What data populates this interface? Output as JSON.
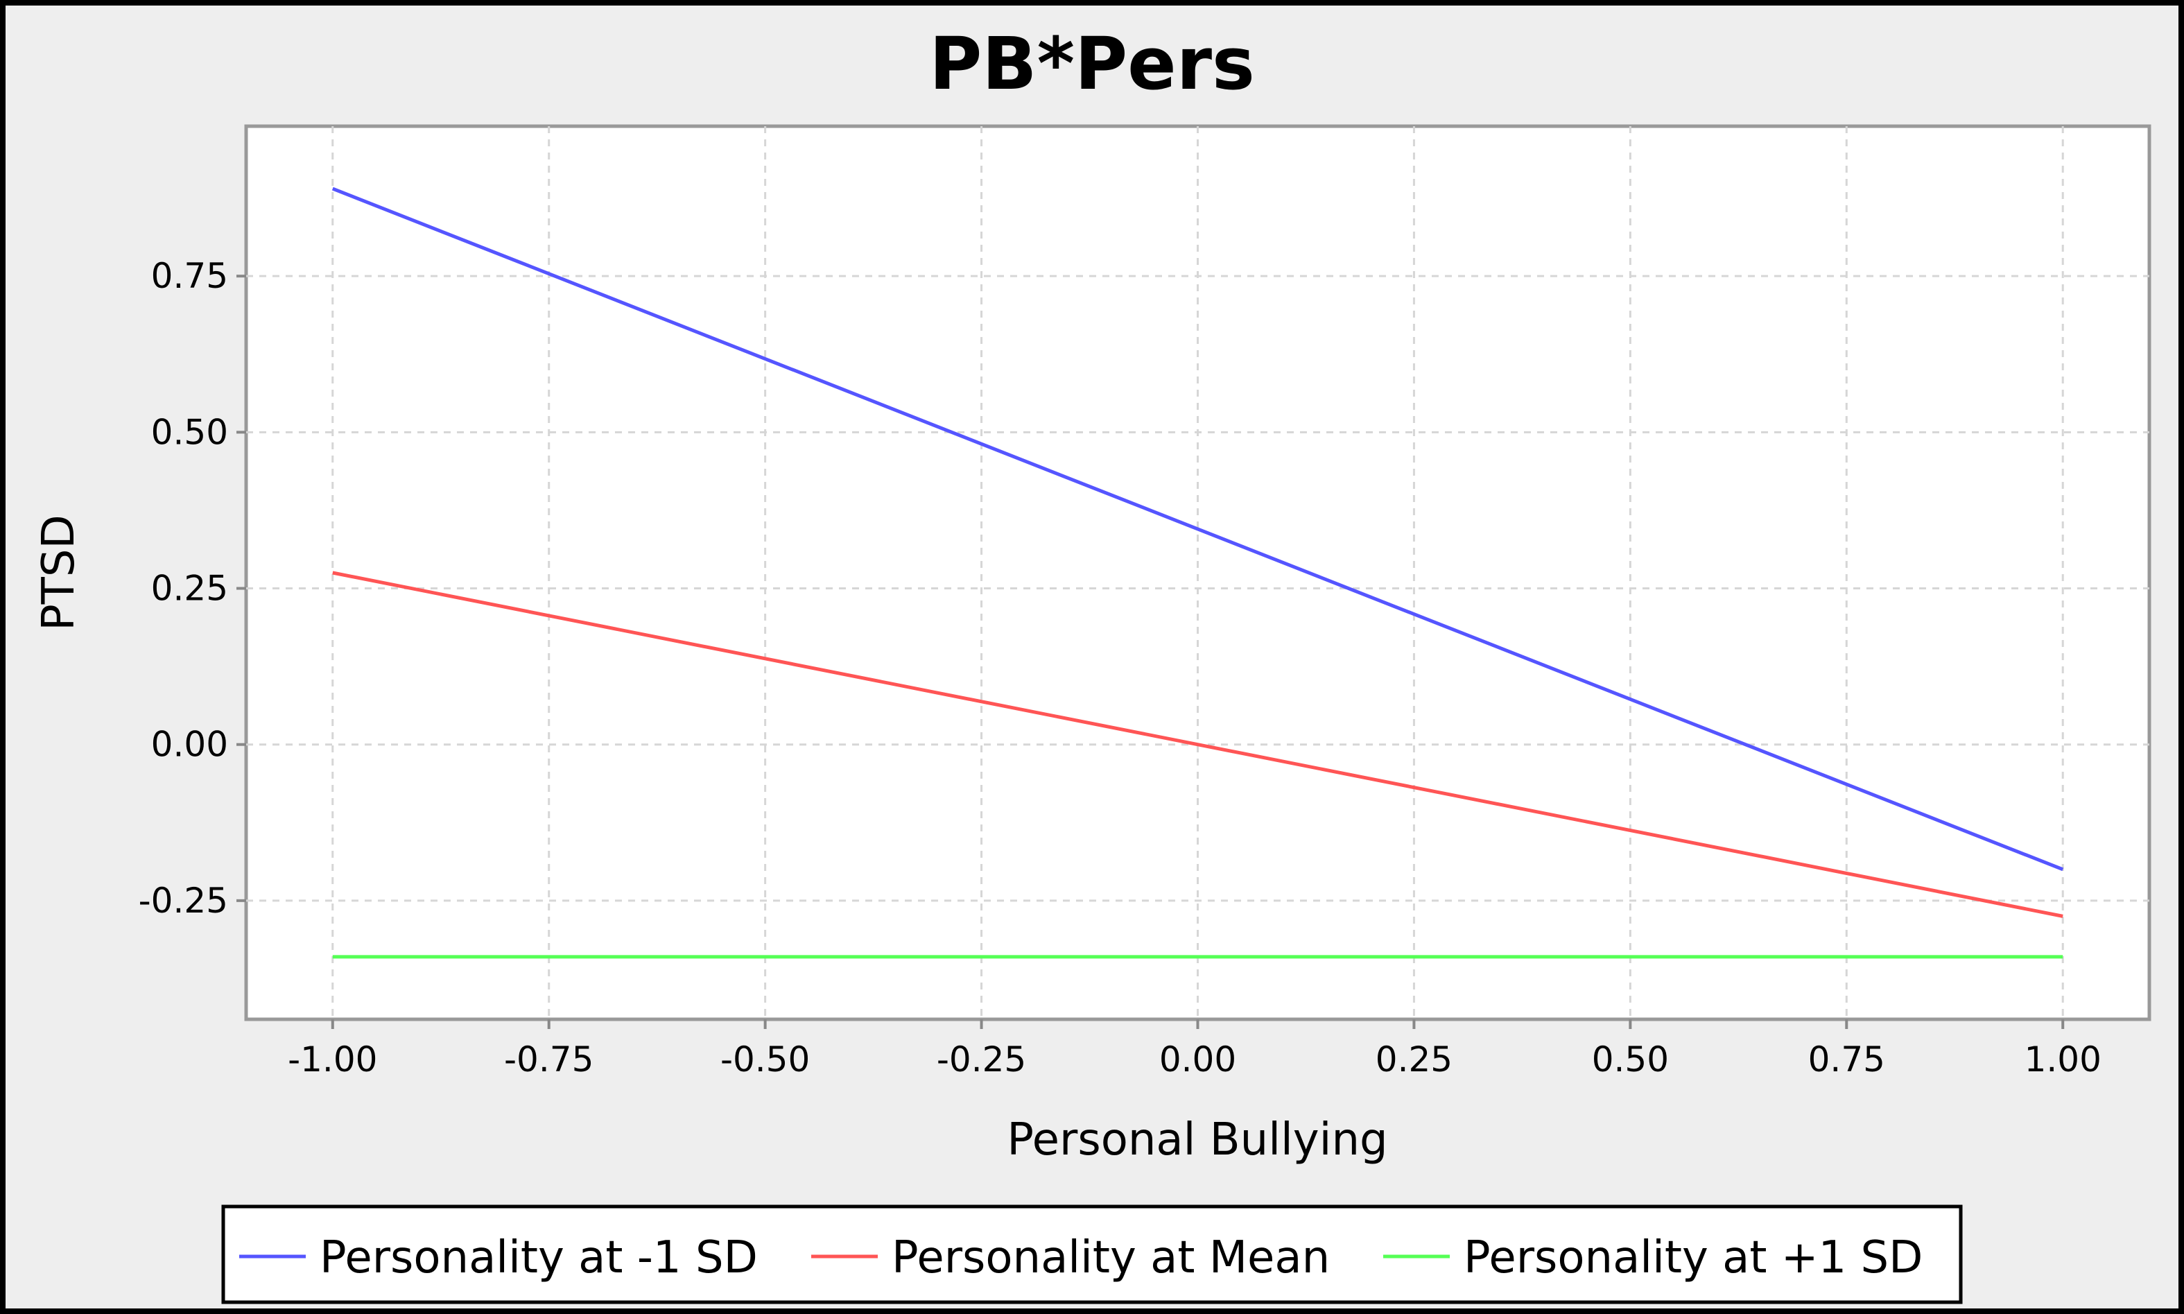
{
  "chart_data": {
    "type": "line",
    "title": "PB*Pers",
    "xlabel": "Personal Bullying",
    "ylabel": "PTSD",
    "xlim": [
      -1.1,
      1.1
    ],
    "ylim": [
      -0.44,
      0.99
    ],
    "x_ticks": [
      -1.0,
      -0.75,
      -0.5,
      -0.25,
      0.0,
      0.25,
      0.5,
      0.75,
      1.0
    ],
    "x_tick_labels": [
      "-1.00",
      "-0.75",
      "-0.50",
      "-0.25",
      "0.00",
      "0.25",
      "0.50",
      "0.75",
      "1.00"
    ],
    "y_ticks": [
      -0.25,
      0.0,
      0.25,
      0.5,
      0.75
    ],
    "y_tick_labels": [
      "-0.25",
      "0.00",
      "0.25",
      "0.50",
      "0.75"
    ],
    "grid": true,
    "legend_position": "bottom",
    "series": [
      {
        "name": "Personality at -1 SD",
        "color": "#5555ff",
        "x": [
          -1.0,
          1.0
        ],
        "y": [
          0.89,
          -0.2
        ]
      },
      {
        "name": "Personality at Mean",
        "color": "#ff5555",
        "x": [
          -1.0,
          1.0
        ],
        "y": [
          0.275,
          -0.275
        ]
      },
      {
        "name": "Personality at +1 SD",
        "color": "#55ff55",
        "x": [
          -1.0,
          1.0
        ],
        "y": [
          -0.34,
          -0.34
        ]
      }
    ]
  }
}
